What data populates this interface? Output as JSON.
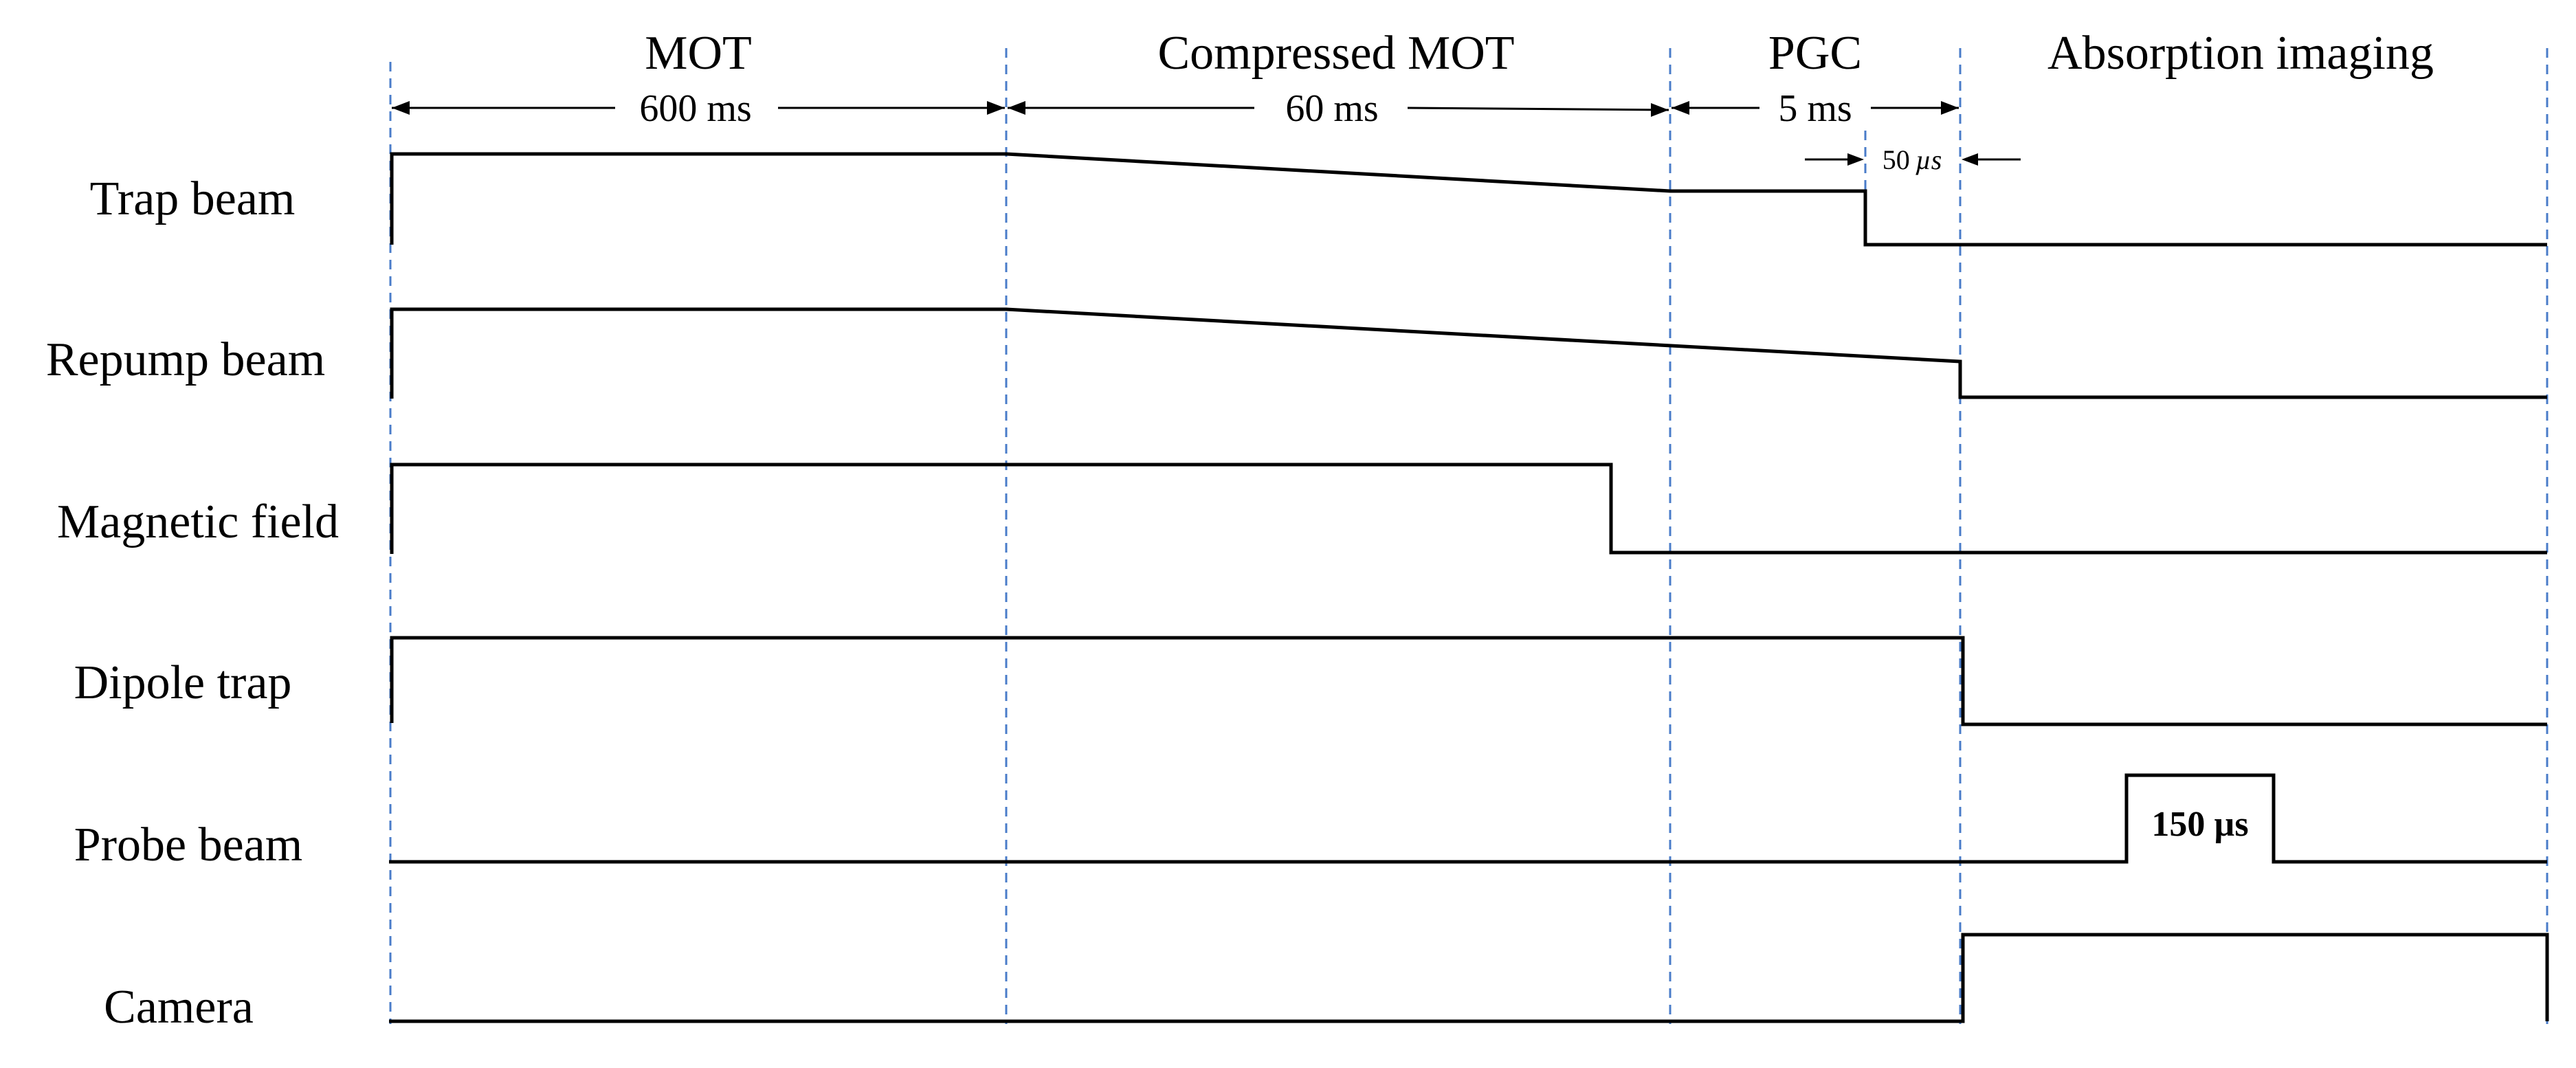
{
  "phases": [
    {
      "id": "mot",
      "label": "MOT",
      "duration": "600 ms"
    },
    {
      "id": "cmot",
      "label": "Compressed MOT",
      "duration": "60 ms"
    },
    {
      "id": "pgc",
      "label": "PGC",
      "duration": "5 ms"
    },
    {
      "id": "imaging",
      "label": "Absorption imaging",
      "duration": ""
    }
  ],
  "sub_interval": {
    "value": "50",
    "unit": "µs"
  },
  "signals": [
    {
      "id": "trap-beam",
      "label": "Trap beam"
    },
    {
      "id": "repump-beam",
      "label": "Repump beam"
    },
    {
      "id": "magnetic-field",
      "label": "Magnetic field"
    },
    {
      "id": "dipole-trap",
      "label": "Dipole trap"
    },
    {
      "id": "probe-beam",
      "label": "Probe beam",
      "pulse_label": "150 µs"
    },
    {
      "id": "camera",
      "label": "Camera"
    }
  ],
  "colors": {
    "divider": "#4a7cc9",
    "trace": "#000000"
  }
}
